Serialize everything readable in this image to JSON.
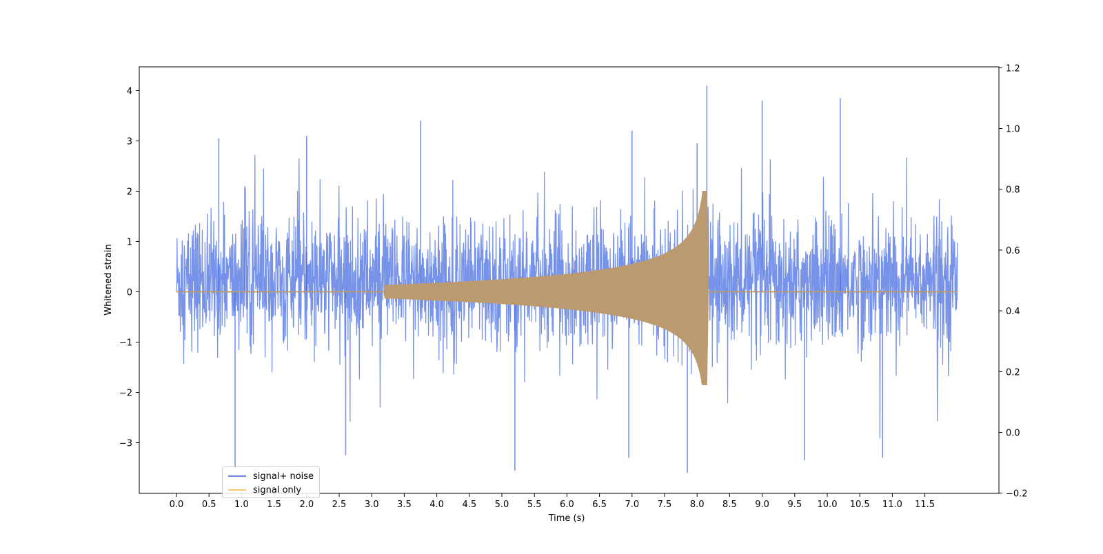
{
  "chart_data": {
    "type": "line",
    "title": "",
    "xlabel": "Time (s)",
    "ylabel": "Whitened strain",
    "xlim": [
      -0.6,
      12.5
    ],
    "ylim": [
      -4.0,
      4.5
    ],
    "y2lim": [
      -0.2,
      1.2
    ],
    "xticks": [
      "0.0",
      "0.5",
      "1.0",
      "1.5",
      "2.0",
      "2.5",
      "3.0",
      "3.5",
      "4.0",
      "4.5",
      "5.0",
      "5.5",
      "6.0",
      "6.5",
      "7.0",
      "7.5",
      "8.0",
      "8.5",
      "9.0",
      "9.5",
      "10.0",
      "10.5",
      "11.0",
      "11.5"
    ],
    "yticks": [
      "4",
      "3",
      "2",
      "1",
      "0",
      "−1",
      "−2",
      "−3"
    ],
    "yticks_values": [
      4,
      3,
      2,
      1,
      0,
      -1,
      -2,
      -3
    ],
    "y2ticks": [
      "1.2",
      "1.0",
      "0.8",
      "0.6",
      "0.4",
      "0.2",
      "0.0",
      "−0.2"
    ],
    "y2ticks_values": [
      1.2,
      1.0,
      0.8,
      0.6,
      0.4,
      0.2,
      0.0,
      -0.2
    ],
    "grid": false,
    "legend_position": "lower-left",
    "series": [
      {
        "name": "signal+ noise",
        "color": "#4169e1",
        "description_kind": "noise",
        "t_range": [
          0.0,
          12.0
        ],
        "typical_range": [
          -1.6,
          2.0
        ],
        "peaks": [
          {
            "t": 0.65,
            "v": 3.05
          },
          {
            "t": 1.05,
            "v": 2.1
          },
          {
            "t": 2.0,
            "v": 3.1
          },
          {
            "t": 3.75,
            "v": 3.4
          },
          {
            "t": 7.0,
            "v": 3.2
          },
          {
            "t": 8.15,
            "v": 4.1
          },
          {
            "t": 8.0,
            "v": 2.95
          },
          {
            "t": 9.0,
            "v": 3.8
          },
          {
            "t": 10.2,
            "v": 3.85
          },
          {
            "t": 0.9,
            "v": -3.5
          },
          {
            "t": 5.2,
            "v": -3.55
          },
          {
            "t": 7.85,
            "v": -3.6
          },
          {
            "t": 9.65,
            "v": -3.35
          },
          {
            "t": 10.85,
            "v": -3.3
          },
          {
            "t": 6.95,
            "v": -3.3
          },
          {
            "t": 2.6,
            "v": -3.25
          }
        ]
      },
      {
        "name": "signal only",
        "color": "#f5b541",
        "description_kind": "chirp",
        "t_range": [
          0.0,
          12.0
        ],
        "chirp_start": 3.2,
        "merger_time": 8.15,
        "peak_amplitude": 2.0,
        "min_amplitude": -1.85
      }
    ]
  }
}
